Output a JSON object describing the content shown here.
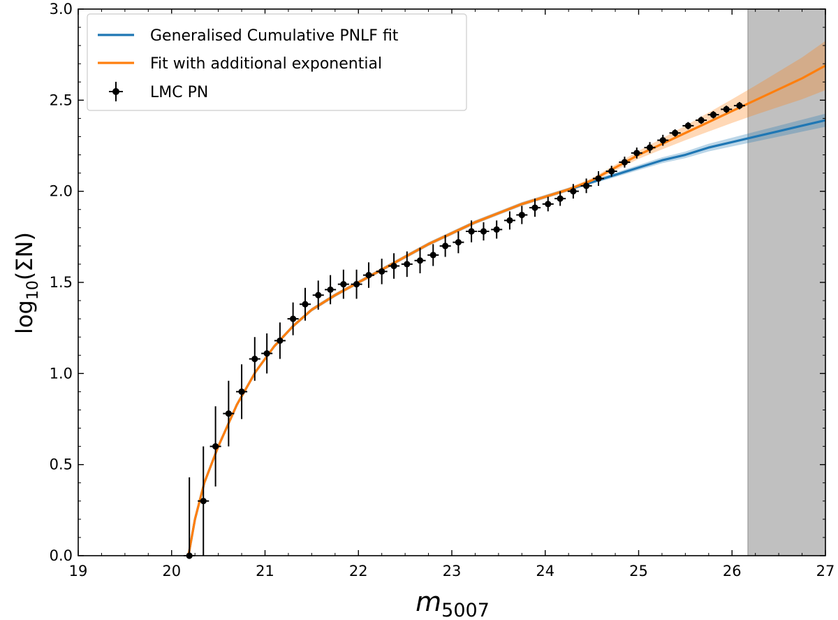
{
  "chart_data": {
    "type": "line",
    "title": "",
    "xlabel": "m",
    "xlabel_subscript": "5007",
    "ylabel": "log",
    "ylabel_subscript": "10",
    "ylabel_suffix": "(ΣN)",
    "xlim": [
      19,
      27
    ],
    "ylim": [
      0.0,
      3.0
    ],
    "x_ticks": [
      19,
      20,
      21,
      22,
      23,
      24,
      25,
      26,
      27
    ],
    "x_tick_labels": [
      "19",
      "20",
      "21",
      "22",
      "23",
      "24",
      "25",
      "26",
      "27"
    ],
    "y_ticks": [
      0.0,
      0.5,
      1.0,
      1.5,
      2.0,
      2.5,
      3.0
    ],
    "y_tick_labels": [
      "0.0",
      "0.5",
      "1.0",
      "1.5",
      "2.0",
      "2.5",
      "3.0"
    ],
    "shaded_region": {
      "x": [
        26.17,
        27.0
      ],
      "color": "#c0c0c0"
    },
    "legend": {
      "position": "top-left",
      "entries": [
        {
          "label": "Generalised Cumulative PNLF fit",
          "color": "#1f77b4",
          "kind": "line"
        },
        {
          "label": "Fit with additional exponential",
          "color": "#ff7f0e",
          "kind": "line"
        },
        {
          "label": "LMC PN",
          "color": "#000000",
          "kind": "errorbar"
        }
      ]
    },
    "series": [
      {
        "name": "Generalised Cumulative PNLF fit",
        "color": "#1f77b4",
        "x": [
          20.18,
          20.25,
          20.35,
          20.5,
          20.7,
          20.9,
          21.1,
          21.3,
          21.5,
          21.75,
          22.0,
          22.25,
          22.5,
          22.75,
          23.0,
          23.25,
          23.5,
          23.75,
          24.0,
          24.25,
          24.5,
          24.75,
          25.0,
          25.25,
          25.5,
          25.75,
          26.0,
          26.25,
          26.5,
          26.75,
          27.0
        ],
        "y": [
          0.0,
          0.2,
          0.4,
          0.6,
          0.83,
          1.01,
          1.15,
          1.26,
          1.35,
          1.43,
          1.5,
          1.57,
          1.64,
          1.71,
          1.77,
          1.83,
          1.88,
          1.93,
          1.97,
          2.01,
          2.05,
          2.09,
          2.13,
          2.17,
          2.2,
          2.24,
          2.27,
          2.3,
          2.33,
          2.36,
          2.39
        ],
        "band_halfwidth": [
          0,
          0,
          0,
          0,
          0,
          0,
          0.01,
          0.01,
          0.01,
          0.01,
          0.01,
          0.01,
          0.01,
          0.01,
          0.01,
          0.01,
          0.01,
          0.01,
          0.01,
          0.01,
          0.01,
          0.012,
          0.014,
          0.016,
          0.018,
          0.021,
          0.024,
          0.027,
          0.03,
          0.033,
          0.036
        ]
      },
      {
        "name": "Fit with additional exponential",
        "color": "#ff7f0e",
        "x": [
          20.18,
          20.25,
          20.35,
          20.5,
          20.7,
          20.9,
          21.1,
          21.3,
          21.5,
          21.75,
          22.0,
          22.25,
          22.5,
          22.75,
          23.0,
          23.25,
          23.5,
          23.75,
          24.0,
          24.25,
          24.5,
          24.75,
          25.0,
          25.25,
          25.5,
          25.75,
          26.0,
          26.25,
          26.5,
          26.75,
          27.0
        ],
        "y": [
          0.0,
          0.2,
          0.4,
          0.6,
          0.83,
          1.01,
          1.15,
          1.26,
          1.35,
          1.43,
          1.5,
          1.57,
          1.64,
          1.71,
          1.77,
          1.83,
          1.88,
          1.93,
          1.97,
          2.01,
          2.06,
          2.13,
          2.2,
          2.26,
          2.32,
          2.38,
          2.44,
          2.5,
          2.56,
          2.62,
          2.69
        ],
        "band_halfwidth": [
          0,
          0,
          0,
          0,
          0,
          0,
          0.01,
          0.01,
          0.01,
          0.01,
          0.01,
          0.01,
          0.01,
          0.01,
          0.01,
          0.01,
          0.01,
          0.01,
          0.01,
          0.01,
          0.012,
          0.016,
          0.022,
          0.03,
          0.04,
          0.052,
          0.065,
          0.08,
          0.097,
          0.115,
          0.135
        ]
      }
    ],
    "errorbar_series": {
      "name": "LMC PN",
      "color": "#000000",
      "x": [
        20.19,
        20.34,
        20.47,
        20.61,
        20.75,
        20.89,
        21.02,
        21.16,
        21.3,
        21.43,
        21.57,
        21.7,
        21.84,
        21.98,
        22.11,
        22.25,
        22.38,
        22.52,
        22.66,
        22.8,
        22.93,
        23.07,
        23.21,
        23.34,
        23.48,
        23.62,
        23.75,
        23.89,
        24.03,
        24.16,
        24.3,
        24.44,
        24.57,
        24.71,
        24.85,
        24.98,
        25.12,
        25.26,
        25.39,
        25.53,
        25.67,
        25.8,
        25.94,
        26.08
      ],
      "y": [
        0.0,
        0.3,
        0.6,
        0.78,
        0.9,
        1.08,
        1.11,
        1.18,
        1.3,
        1.38,
        1.43,
        1.46,
        1.49,
        1.49,
        1.54,
        1.56,
        1.59,
        1.6,
        1.62,
        1.65,
        1.7,
        1.72,
        1.78,
        1.78,
        1.79,
        1.84,
        1.87,
        1.91,
        1.93,
        1.96,
        2.0,
        2.03,
        2.07,
        2.11,
        2.16,
        2.21,
        2.24,
        2.28,
        2.32,
        2.36,
        2.39,
        2.42,
        2.45,
        2.47
      ],
      "yerr": [
        0.43,
        0.3,
        0.22,
        0.18,
        0.15,
        0.12,
        0.11,
        0.1,
        0.09,
        0.09,
        0.08,
        0.08,
        0.08,
        0.08,
        0.07,
        0.07,
        0.07,
        0.07,
        0.07,
        0.06,
        0.06,
        0.06,
        0.06,
        0.05,
        0.05,
        0.05,
        0.05,
        0.05,
        0.04,
        0.04,
        0.04,
        0.04,
        0.04,
        0.03,
        0.03,
        0.03,
        0.03,
        0.03,
        0.02,
        0.02,
        0.02,
        0.02,
        0.02,
        0.02
      ],
      "xerr": 0.06
    }
  }
}
